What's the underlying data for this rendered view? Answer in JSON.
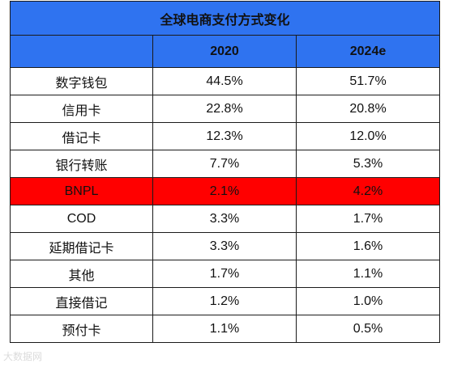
{
  "chart_data": {
    "type": "table",
    "title": "全球电商支付方式变化",
    "columns": [
      "",
      "2020",
      "2024e"
    ],
    "rows": [
      {
        "method": "数字钱包",
        "v2020": "44.5%",
        "v2024e": "51.7%"
      },
      {
        "method": "信用卡",
        "v2020": "22.8%",
        "v2024e": "20.8%"
      },
      {
        "method": "借记卡",
        "v2020": "12.3%",
        "v2024e": "12.0%"
      },
      {
        "method": "银行转账",
        "v2020": "7.7%",
        "v2024e": "5.3%"
      },
      {
        "method": "BNPL",
        "v2020": "2.1%",
        "v2024e": "4.2%",
        "highlight": true
      },
      {
        "method": "COD",
        "v2020": "3.3%",
        "v2024e": "1.7%"
      },
      {
        "method": "延期借记卡",
        "v2020": "3.3%",
        "v2024e": "1.6%"
      },
      {
        "method": "其他",
        "v2020": "1.7%",
        "v2024e": "1.1%"
      },
      {
        "method": "直接借记",
        "v2020": "1.2%",
        "v2024e": "1.0%"
      },
      {
        "method": "预付卡",
        "v2020": "1.1%",
        "v2024e": "0.5%"
      }
    ],
    "highlight_color": "#ff0000",
    "header_color": "#2f73f0"
  },
  "watermark": "大数据网"
}
